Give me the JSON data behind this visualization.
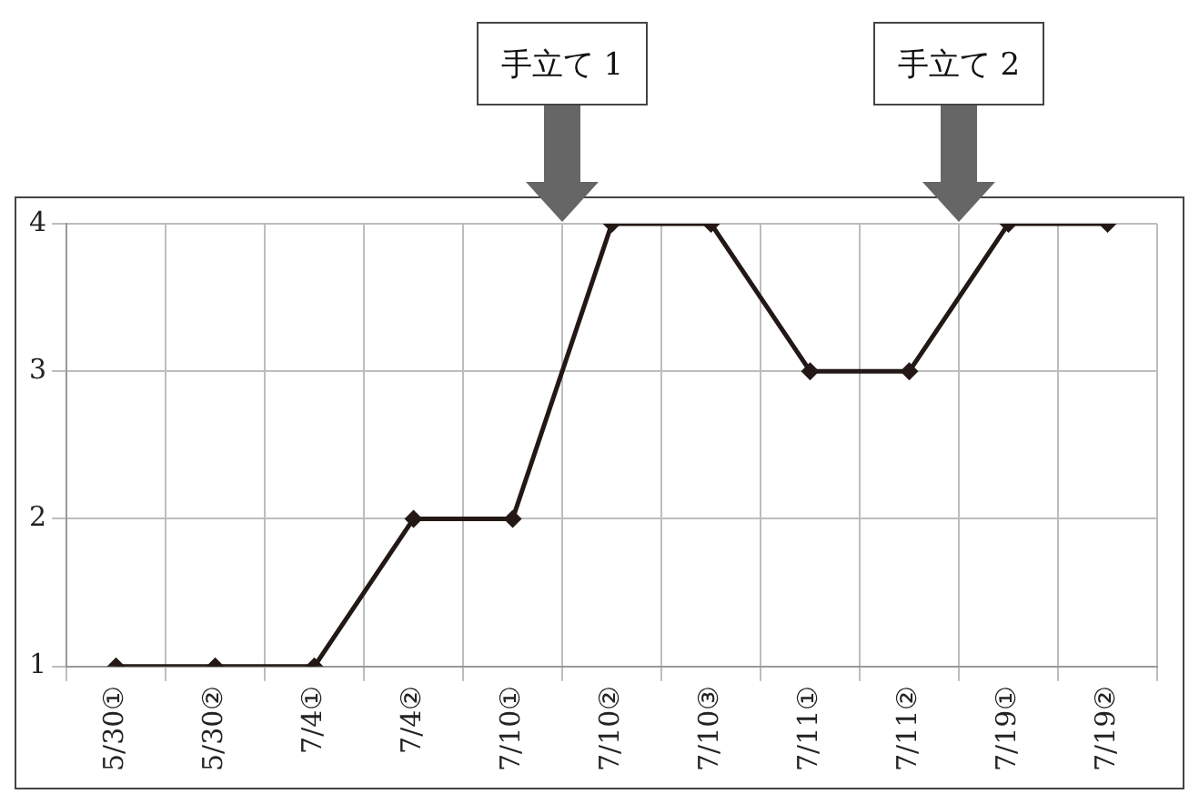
{
  "chart_data": {
    "type": "line",
    "categories": [
      "5/30①",
      "5/30②",
      "7/4①",
      "7/4②",
      "7/10①",
      "7/10②",
      "7/10③",
      "7/11①",
      "7/11②",
      "7/19①",
      "7/19②"
    ],
    "values": [
      1,
      1,
      1,
      2,
      2,
      4,
      4,
      3,
      3,
      4,
      4
    ],
    "color": "#231815",
    "marker": "diamond",
    "line_style": "solid",
    "ylim": [
      1,
      4
    ],
    "yticks": [
      1,
      2,
      3,
      4
    ],
    "grid": true,
    "annotations": [
      "手立て 1",
      "手立て 2"
    ]
  }
}
